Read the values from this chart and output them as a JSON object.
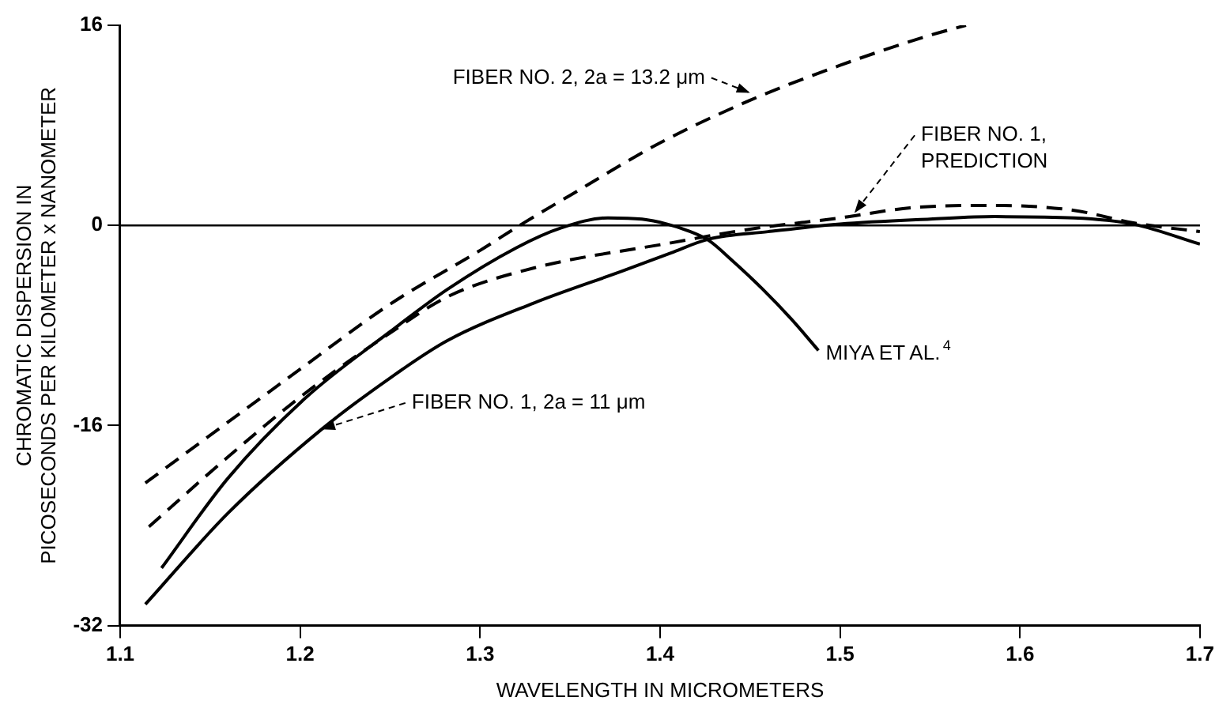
{
  "chart_data": {
    "type": "line",
    "xlabel": "WAVELENGTH IN MICROMETERS",
    "ylabel": "CHROMATIC DISPERSION IN\nPICOSECONDS PER KILOMETER x NANOMETER",
    "xlim": [
      1.1,
      1.7
    ],
    "xticks": [
      1.1,
      1.2,
      1.3,
      1.4,
      1.5,
      1.6,
      1.7
    ],
    "ylim": [
      -32,
      16
    ],
    "yticks": [
      16,
      0,
      -16,
      -32
    ],
    "grid": false,
    "marker": "none",
    "ref_lines": [
      {
        "axis": "y",
        "value": 0,
        "label": null,
        "color": "#000000",
        "line_style": "solid"
      }
    ],
    "series": [
      {
        "name": "FIBER NO. 2, 2a = 13.2 μm",
        "color": "#000000",
        "line_style": "dashed",
        "x": [
          1.114,
          1.2,
          1.25,
          1.3,
          1.322,
          1.35,
          1.4,
          1.45,
          1.5,
          1.55,
          1.57
        ],
        "values": [
          -20.6,
          -11.5,
          -6.3,
          -2,
          0,
          2.4,
          6.6,
          10,
          12.8,
          15.2,
          16
        ]
      },
      {
        "name": "FIBER NO. 1,\nPREDICTION",
        "color": "#000000",
        "line_style": "dashed",
        "x": [
          1.116,
          1.16,
          1.203,
          1.25,
          1.282,
          1.33,
          1.406,
          1.45,
          1.5,
          1.539,
          1.586,
          1.63,
          1.663,
          1.7
        ],
        "values": [
          -24.1,
          -18.5,
          -13.4,
          -8.6,
          -5.7,
          -3.4,
          -1.4,
          -0.3,
          0.6,
          1.4,
          1.6,
          1.2,
          0.2,
          -0.5
        ]
      },
      {
        "name": "FIBER NO. 1, 2a = 11 μm",
        "color": "#000000",
        "line_style": "solid",
        "x": [
          1.114,
          1.16,
          1.212,
          1.25,
          1.282,
          1.33,
          1.38,
          1.406,
          1.427,
          1.46,
          1.5,
          1.55,
          1.586,
          1.63,
          1.663,
          1.7
        ],
        "values": [
          -30.3,
          -23,
          -16.3,
          -12.2,
          -9.2,
          -6.2,
          -3.6,
          -2.2,
          -1.1,
          -0.5,
          0.1,
          0.5,
          0.7,
          0.6,
          0.1,
          -1.5
        ]
      },
      {
        "name": "MIYA ET AL.$^{4}$",
        "color": "#000000",
        "line_style": "solid",
        "x": [
          1.123,
          1.16,
          1.203,
          1.25,
          1.282,
          1.32,
          1.345,
          1.371,
          1.39,
          1.404,
          1.415,
          1.427,
          1.44,
          1.457,
          1.473,
          1.488
        ],
        "values": [
          -27.4,
          -20.2,
          -13.8,
          -8.5,
          -5.1,
          -1.8,
          -0.2,
          0.6,
          0.5,
          0.1,
          -0.4,
          -1.2,
          -2.8,
          -5.1,
          -7.5,
          -10
        ]
      }
    ]
  }
}
